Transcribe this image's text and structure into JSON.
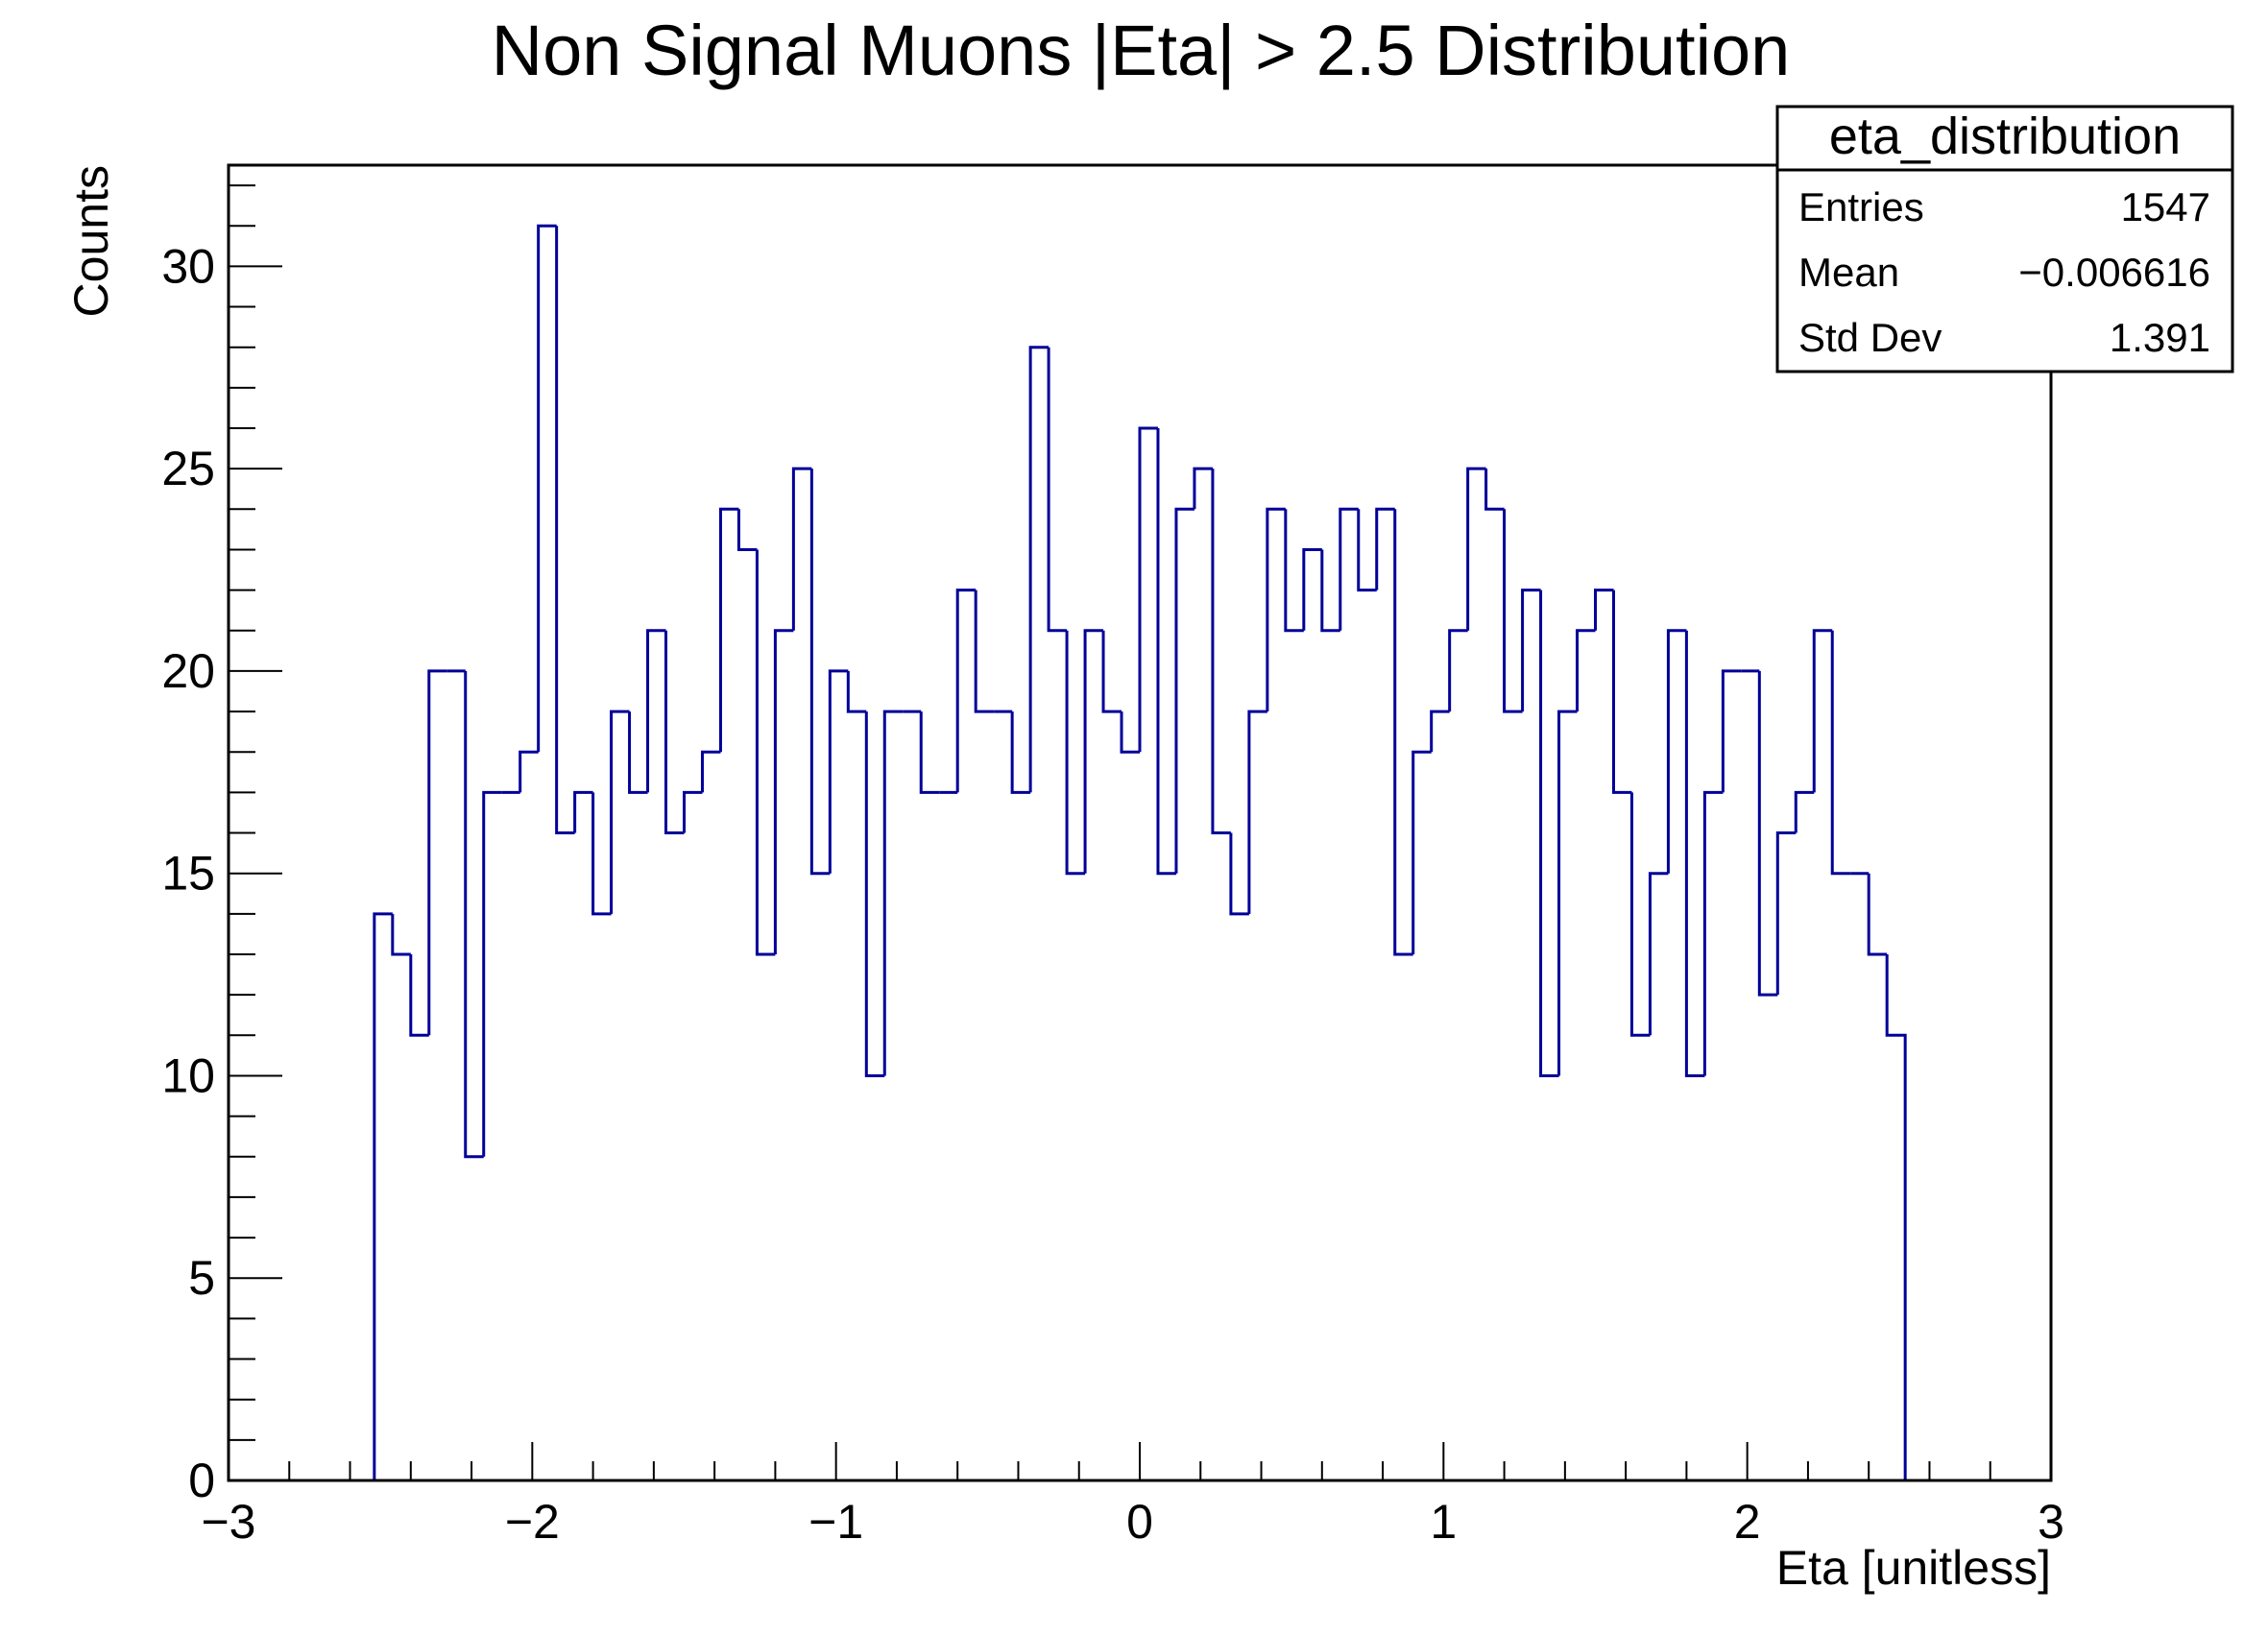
{
  "colors": {
    "histogram": "#000099",
    "axes": "#000000",
    "background": "#ffffff"
  },
  "stats_box": {
    "title": "eta_distribution",
    "rows": [
      {
        "label": "Entries",
        "value": "1547"
      },
      {
        "label": "Mean",
        "value": "−0.006616"
      },
      {
        "label": "Std Dev",
        "value": "1.391"
      }
    ]
  },
  "chart_data": {
    "type": "bar",
    "histtype": "step",
    "title": "Non Signal Muons |Eta| > 2.5  Distribution",
    "xlabel": "Eta [unitless]",
    "ylabel": "Counts",
    "xlim": [
      -3,
      3
    ],
    "ylim": [
      0,
      32.5
    ],
    "grid": false,
    "x_ticks": [
      -3,
      -2,
      -1,
      0,
      1,
      2,
      3
    ],
    "x_tick_labels": [
      "−3",
      "−2",
      "−1",
      "0",
      "1",
      "2",
      "3"
    ],
    "y_ticks": [
      0,
      5,
      10,
      15,
      20,
      25,
      30
    ],
    "y_tick_labels": [
      "0",
      "5",
      "10",
      "15",
      "20",
      "25",
      "30"
    ],
    "bin_edges_range": [
      -2.52,
      2.52
    ],
    "bin_width": 0.06,
    "values": [
      14,
      13,
      11,
      20,
      20,
      8,
      17,
      17,
      18,
      31,
      16,
      17,
      14,
      19,
      17,
      21,
      16,
      17,
      18,
      24,
      23,
      13,
      21,
      25,
      15,
      20,
      19,
      10,
      19,
      19,
      17,
      17,
      22,
      19,
      19,
      17,
      28,
      21,
      15,
      21,
      19,
      18,
      26,
      15,
      24,
      25,
      16,
      14,
      19,
      24,
      21,
      23,
      21,
      24,
      22,
      24,
      13,
      18,
      19,
      21,
      25,
      24,
      19,
      22,
      10,
      19,
      21,
      22,
      17,
      11,
      15,
      21,
      10,
      17,
      20,
      20,
      12,
      16,
      17,
      21,
      15,
      15,
      13,
      11
    ]
  }
}
